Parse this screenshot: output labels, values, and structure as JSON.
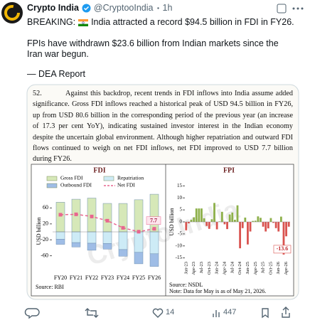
{
  "post": {
    "name": "Crypto India",
    "handle": "@CryptooIndia",
    "time": "1h",
    "breaking": "BREAKING:",
    "headline": "India attracted a record $94.5 billion in FDI in FY26.",
    "line2": "FPIs have withdrawn $23.6 billion from Indian markets since the Iran war begun.",
    "line3": "— DEA Report",
    "likes": 14,
    "views": 447
  },
  "image": {
    "paragraph_number": "52.",
    "paragraph": "Against this backdrop, recent trends in FDI inflows into India assume added significance. Gross FDI inflows reached a historical peak of USD 94.5 billion in FY26, up from USD 80.6 billion in the corresponding period of the previous year (an increase of 17.3 per cent YoY), indicating sustained investor interest in the Indian economy despite the uncertain global environment. Although higher repatriation and outward FDI flows continued to weigh on net FDI inflows, net FDI improved to USD 7.7 billion during FY26.",
    "watermark": "Crypto India"
  },
  "chart_data": [
    {
      "type": "stacked-bar-line",
      "title": "FDI",
      "y_label": "USD billion",
      "source": "Source: RBI",
      "categories": [
        "FY20",
        "FY21",
        "FY22",
        "FY23",
        "FY24",
        "FY25",
        "FY26"
      ],
      "series": [
        {
          "name": "Gross FDI",
          "color": "#d6e8b8",
          "values": [
            74.4,
            82.0,
            84.8,
            71.4,
            71.3,
            80.6,
            94.5
          ]
        },
        {
          "name": "Repatriation",
          "color": "#cdebf6",
          "values": [
            -18.4,
            -27.0,
            -28.6,
            -29.3,
            -44.5,
            -51.5,
            -55.0
          ]
        },
        {
          "name": "Outbound FDI",
          "color": "#9fbde6",
          "values": [
            -13.0,
            -11.0,
            -17.6,
            -14.1,
            -16.7,
            -28.7,
            -31.8
          ]
        },
        {
          "name": "Net FDI",
          "color": "#e8668f",
          "type": "line",
          "values": [
            43.0,
            44.0,
            38.6,
            28.0,
            10.1,
            0.4,
            7.7
          ]
        }
      ],
      "ylim": [
        -100,
        100
      ],
      "yticks": [
        60,
        20,
        -20,
        -60
      ]
    },
    {
      "type": "bar",
      "title": "FPI",
      "y_label": "USD billion",
      "source": "Source: NSDL",
      "note": "Note: Data for May is as of May 21, 2026.",
      "categories": [
        "Jan-23",
        null,
        null,
        "Apr-23",
        null,
        null,
        "Jul-23",
        null,
        null,
        "Oct-23",
        null,
        null,
        "Jan-24",
        null,
        null,
        "Apr-24",
        null,
        null,
        "Jul-24",
        null,
        null,
        "Oct-24",
        null,
        null,
        "Jan-25",
        null,
        null,
        "Apr-25",
        null,
        null,
        "Jul-25",
        null,
        null,
        "Oct-25",
        null,
        null,
        "Jan-26",
        null,
        null,
        "Apr-26",
        null
      ],
      "values": [
        -3.5,
        -0.6,
        0.9,
        1.9,
        5.6,
        5.6,
        5.6,
        1.5,
        -1.7,
        -2.9,
        1.1,
        7.9,
        -3.1,
        0.2,
        4.2,
        -1.0,
        -3.0,
        3.1,
        3.9,
        0.9,
        6.9,
        -11.0,
        -2.6,
        1.8,
        -9.4,
        -4.0,
        0.4,
        0.5,
        2.3,
        1.7,
        -2.0,
        -4.0,
        -2.7,
        1.6,
        -0.4,
        -2.6,
        -4.0,
        2.2,
        -13.6,
        -6.0,
        -2.0
      ],
      "positive_color": "#8db04a",
      "negative_color": "#d9534f",
      "labeled_index": 38,
      "ylim": [
        -16,
        16
      ],
      "yticks": [
        15,
        10,
        5,
        0,
        -5,
        -10,
        -15
      ]
    }
  ]
}
